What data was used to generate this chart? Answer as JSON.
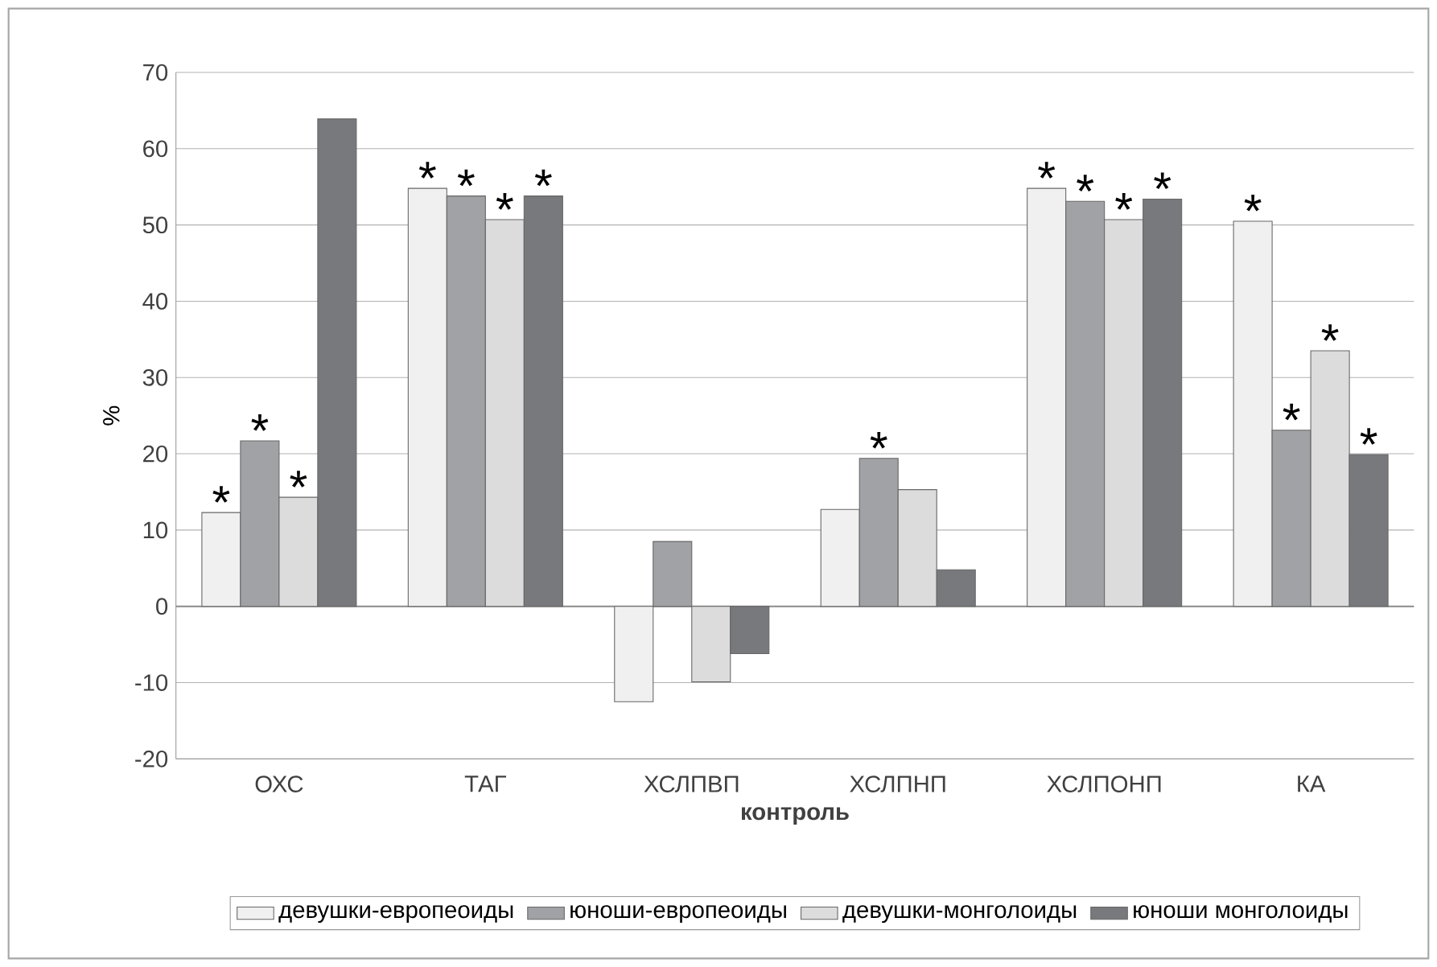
{
  "chart_data": {
    "type": "bar",
    "xlabel": "контроль",
    "ylabel": "%",
    "categories": [
      "ОХС",
      "ТАГ",
      "ХСЛПВП",
      "ХСЛПНП",
      "ХСЛПОНП",
      "КА"
    ],
    "series": [
      {
        "name": "девушки-европеоиды",
        "color": "#f0f0f0",
        "values": [
          12.3,
          54.8,
          -12.5,
          12.7,
          54.8,
          50.5
        ],
        "value_labels": [
          "*",
          "*",
          null,
          null,
          "*",
          "*"
        ]
      },
      {
        "name": "юноши-европеоиды",
        "color": "#a0a2a5",
        "values": [
          21.7,
          53.8,
          8.5,
          19.4,
          53.1,
          23.1
        ],
        "value_labels": [
          "*",
          "*",
          null,
          "*",
          "*",
          "*"
        ]
      },
      {
        "name": "девушки-монголоиды",
        "color": "#dcdcdc",
        "values": [
          14.3,
          50.7,
          -9.9,
          15.3,
          50.7,
          33.5
        ],
        "value_labels": [
          "*",
          "*",
          null,
          null,
          "*",
          "*"
        ]
      },
      {
        "name": "юноши монголоиды",
        "color": "#77797c",
        "values": [
          63.9,
          53.8,
          -6.2,
          4.8,
          53.4,
          19.9
        ],
        "value_labels": [
          null,
          "*",
          null,
          null,
          "*",
          "*"
        ]
      }
    ],
    "ylim": [
      -20,
      70
    ],
    "yticks": [
      -20,
      -10,
      0,
      10,
      20,
      30,
      40,
      50,
      60,
      70
    ],
    "grid": "y",
    "legend": "bottom"
  }
}
